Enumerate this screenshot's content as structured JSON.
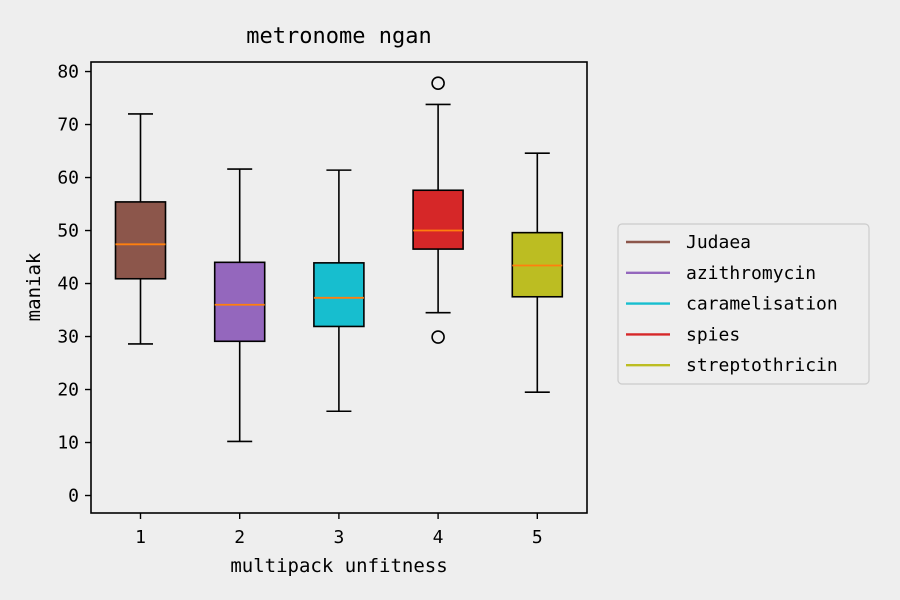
{
  "chart_data": {
    "type": "box",
    "title": "metronome ngan",
    "xlabel": "multipack unfitness",
    "ylabel": "maniak",
    "ylim": [
      -3.3,
      81.8
    ],
    "yticks": [
      0,
      10,
      20,
      30,
      40,
      50,
      60,
      70,
      80
    ],
    "categories": [
      "1",
      "2",
      "3",
      "4",
      "5"
    ],
    "grid": false,
    "legend_position": "right",
    "series": [
      {
        "name": "Judaea",
        "color": "#8c564b",
        "whisker_low": 28.6,
        "q1": 40.9,
        "median": 47.4,
        "q3": 55.4,
        "whisker_high": 72.0,
        "outliers": []
      },
      {
        "name": "azithromycin",
        "color": "#9467bd",
        "whisker_low": 10.2,
        "q1": 29.1,
        "median": 36.0,
        "q3": 44.0,
        "whisker_high": 61.6,
        "outliers": []
      },
      {
        "name": "caramelisation",
        "color": "#17becf",
        "whisker_low": 15.9,
        "q1": 31.9,
        "median": 37.3,
        "q3": 43.9,
        "whisker_high": 61.4,
        "outliers": []
      },
      {
        "name": "spies",
        "color": "#d62728",
        "whisker_low": 34.5,
        "q1": 46.5,
        "median": 50.0,
        "q3": 57.6,
        "whisker_high": 73.8,
        "outliers": [
          77.8,
          29.9
        ]
      },
      {
        "name": "streptothricin",
        "color": "#bcbd22",
        "whisker_low": 19.5,
        "q1": 37.5,
        "median": 43.4,
        "q3": 49.6,
        "whisker_high": 64.6,
        "outliers": []
      }
    ],
    "median_color": "#ff7f0e"
  }
}
